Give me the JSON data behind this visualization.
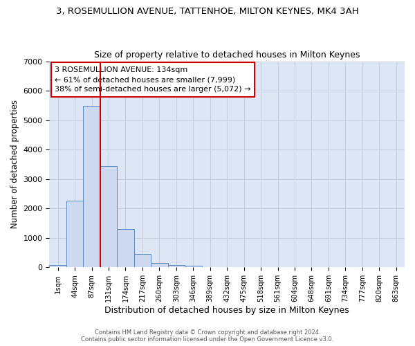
{
  "title1": "3, ROSEMULLION AVENUE, TATTENHOE, MILTON KEYNES, MK4 3AH",
  "title2": "Size of property relative to detached houses in Milton Keynes",
  "xlabel": "Distribution of detached houses by size in Milton Keynes",
  "ylabel": "Number of detached properties",
  "footer1": "Contains HM Land Registry data © Crown copyright and database right 2024.",
  "footer2": "Contains public sector information licensed under the Open Government Licence v3.0.",
  "bar_color": "#ccd9ee",
  "bar_edge_color": "#5a8ac6",
  "grid_color": "#c8d0dc",
  "bg_color": "#dce6f5",
  "annotation_box_color": "#cc0000",
  "vline_color": "#cc0000",
  "categories": [
    "1sqm",
    "44sqm",
    "87sqm",
    "131sqm",
    "174sqm",
    "217sqm",
    "260sqm",
    "303sqm",
    "346sqm",
    "389sqm",
    "432sqm",
    "475sqm",
    "518sqm",
    "561sqm",
    "604sqm",
    "648sqm",
    "691sqm",
    "734sqm",
    "777sqm",
    "820sqm",
    "863sqm"
  ],
  "bar_heights": [
    75,
    2275,
    5480,
    3430,
    1310,
    460,
    155,
    90,
    55,
    0,
    0,
    0,
    0,
    0,
    0,
    0,
    0,
    0,
    0,
    0,
    0
  ],
  "ylim": [
    0,
    7000
  ],
  "yticks": [
    0,
    1000,
    2000,
    3000,
    4000,
    5000,
    6000,
    7000
  ],
  "annotation_line1": "3 ROSEMULLION AVENUE: 134sqm",
  "annotation_line2": "← 61% of detached houses are smaller (7,999)",
  "annotation_line3": "38% of semi-detached houses are larger (5,072) →",
  "vline_x_index": 2.5,
  "bar_width": 1.0
}
